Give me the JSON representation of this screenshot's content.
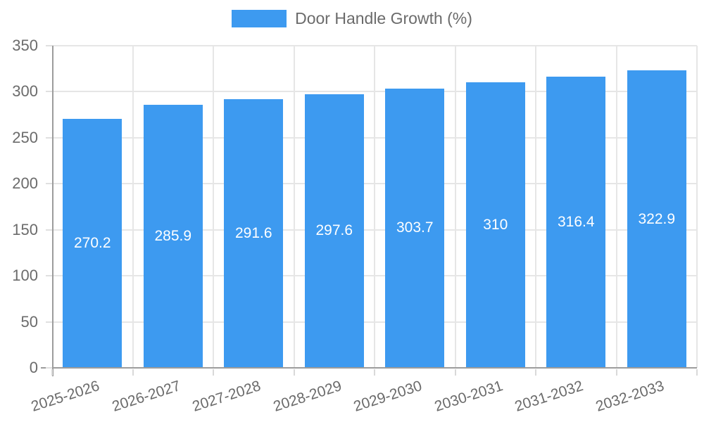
{
  "legend": {
    "label": "Door Handle Growth (%)"
  },
  "colors": {
    "bar": "#3D9AF0",
    "grid": "#e6e6e6",
    "axis": "#9c9c9c",
    "tick_text": "#6b6b6b",
    "value_label_text": "#ffffff"
  },
  "chart_data": {
    "type": "bar",
    "title": "Door Handle Growth (%)",
    "categories": [
      "2025-2026",
      "2026-2027",
      "2027-2028",
      "2028-2029",
      "2029-2030",
      "2030-2031",
      "2031-2032",
      "2032-2033"
    ],
    "values": [
      270.2,
      285.9,
      291.6,
      297.6,
      303.7,
      310,
      316.4,
      322.9
    ],
    "value_labels": [
      "270.2",
      "285.9",
      "291.6",
      "297.6",
      "303.7",
      "310",
      "316.4",
      "322.9"
    ],
    "xlabel": "",
    "ylabel": "",
    "ylim": [
      0,
      350
    ],
    "yticks": [
      0,
      50,
      100,
      150,
      200,
      250,
      300,
      350
    ],
    "ytick_labels": [
      "0",
      "50",
      "100",
      "150",
      "200",
      "250",
      "300",
      "350"
    ],
    "grid": true,
    "legend_position": "top"
  }
}
